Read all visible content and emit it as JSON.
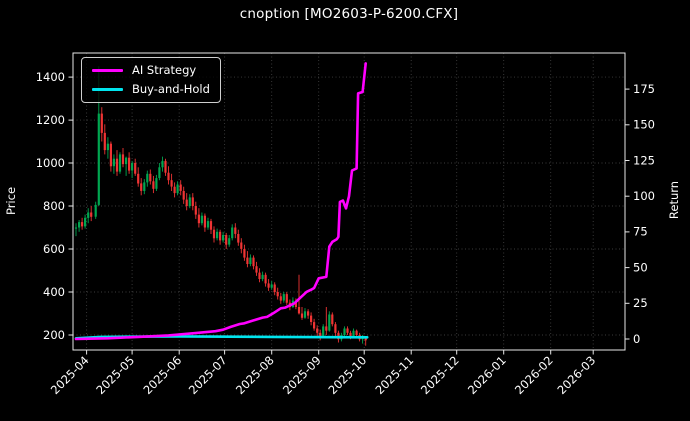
{
  "window": {
    "title": "cnoption [MO2603-P-6200.CFX]"
  },
  "chart_data": {
    "type": "candlestick",
    "title": "cnoption [MO2603-P-6200.CFX]",
    "ylabel_left": "Price",
    "ylabel_right": "Return",
    "grid": "dotted",
    "legend_position": "upper-left",
    "colors": {
      "background": "#000000",
      "text": "#ffffff",
      "spine": "#e8e8e8",
      "grid": "#3d3d3d",
      "candle_up": "#00a650",
      "candle_down": "#ef3434",
      "ai_strategy": "#ff00ff",
      "buy_and_hold": "#00e5ee"
    },
    "axes": {
      "x_ticks": [
        "2025-04",
        "2025-05",
        "2025-06",
        "2025-07",
        "2025-08",
        "2025-09",
        "2025-10",
        "2025-11",
        "2025-12",
        "2026-01",
        "2026-02",
        "2026-03"
      ],
      "x_tick_dates": [
        "2025-04-01",
        "2025-05-01",
        "2025-06-01",
        "2025-07-01",
        "2025-08-01",
        "2025-09-01",
        "2025-10-01",
        "2025-11-01",
        "2025-12-01",
        "2026-01-01",
        "2026-02-01",
        "2026-03-01"
      ],
      "x_range": [
        "2025-03-23",
        "2026-03-22"
      ],
      "price_ticks": [
        200,
        400,
        600,
        800,
        1000,
        1200,
        1400
      ],
      "price_range": [
        130,
        1512
      ],
      "return_ticks": [
        0,
        25,
        50,
        75,
        100,
        125,
        150,
        175
      ],
      "return_range": [
        -7.7,
        200.3
      ]
    },
    "series": [
      {
        "name": "AI Strategy",
        "axis": "return",
        "color_key": "ai_strategy",
        "points": [
          [
            "2025-03-25",
            0
          ],
          [
            "2025-04-15",
            0.5
          ],
          [
            "2025-05-05",
            1.5
          ],
          [
            "2025-05-25",
            2.5
          ],
          [
            "2025-06-10",
            4
          ],
          [
            "2025-06-25",
            5.5
          ],
          [
            "2025-06-30",
            6.5
          ],
          [
            "2025-07-05",
            8.5
          ],
          [
            "2025-07-11",
            10.5
          ],
          [
            "2025-07-14",
            11
          ],
          [
            "2025-07-20",
            13
          ],
          [
            "2025-07-26",
            15
          ],
          [
            "2025-07-29",
            15.5
          ],
          [
            "2025-08-02",
            18
          ],
          [
            "2025-08-07",
            21.5
          ],
          [
            "2025-08-10",
            22
          ],
          [
            "2025-08-16",
            25
          ],
          [
            "2025-08-20",
            29
          ],
          [
            "2025-08-24",
            33
          ],
          [
            "2025-08-27",
            34.5
          ],
          [
            "2025-08-29",
            35.7
          ],
          [
            "2025-09-01",
            42.5
          ],
          [
            "2025-09-06",
            43.5
          ],
          [
            "2025-09-08",
            64.7
          ],
          [
            "2025-09-10",
            68
          ],
          [
            "2025-09-13",
            70
          ],
          [
            "2025-09-14",
            71.6
          ],
          [
            "2025-09-15",
            96
          ],
          [
            "2025-09-17",
            97
          ],
          [
            "2025-09-19",
            91.5
          ],
          [
            "2025-09-21",
            100
          ],
          [
            "2025-09-23",
            118
          ],
          [
            "2025-09-26",
            119.5
          ],
          [
            "2025-09-27",
            172
          ],
          [
            "2025-09-30",
            173
          ],
          [
            "2025-10-02",
            193
          ]
        ]
      },
      {
        "name": "Buy-and-Hold",
        "axis": "return",
        "color_key": "buy_and_hold",
        "points": [
          [
            "2025-03-25",
            0.5
          ],
          [
            "2025-04-10",
            1.5
          ],
          [
            "2025-06-01",
            1.8
          ],
          [
            "2025-08-01",
            1.5
          ],
          [
            "2025-10-03",
            1.2
          ]
        ]
      }
    ],
    "candles": [
      [
        "2025-03-25",
        695,
        720,
        660,
        700
      ],
      [
        "2025-03-27",
        700,
        735,
        680,
        725
      ],
      [
        "2025-03-29",
        725,
        745,
        690,
        705
      ],
      [
        "2025-03-31",
        705,
        760,
        695,
        745
      ],
      [
        "2025-04-02",
        745,
        790,
        720,
        770
      ],
      [
        "2025-04-04",
        770,
        800,
        730,
        750
      ],
      [
        "2025-04-07",
        750,
        820,
        740,
        805
      ],
      [
        "2025-04-09",
        805,
        1450,
        800,
        1230
      ],
      [
        "2025-04-11",
        1230,
        1260,
        1100,
        1140
      ],
      [
        "2025-04-13",
        1140,
        1180,
        1040,
        1060
      ],
      [
        "2025-04-15",
        1060,
        1120,
        1020,
        1090
      ],
      [
        "2025-04-17",
        1090,
        1100,
        960,
        985
      ],
      [
        "2025-04-19",
        985,
        1040,
        950,
        1020
      ],
      [
        "2025-04-21",
        1020,
        1060,
        940,
        960
      ],
      [
        "2025-04-23",
        960,
        1050,
        950,
        1040
      ],
      [
        "2025-04-25",
        1040,
        1070,
        980,
        995
      ],
      [
        "2025-04-27",
        995,
        1030,
        940,
        1025
      ],
      [
        "2025-04-29",
        1025,
        1050,
        950,
        965
      ],
      [
        "2025-05-01",
        965,
        1010,
        930,
        1000
      ],
      [
        "2025-05-03",
        1000,
        1020,
        940,
        950
      ],
      [
        "2025-05-05",
        950,
        980,
        890,
        905
      ],
      [
        "2025-05-07",
        905,
        930,
        850,
        870
      ],
      [
        "2025-05-09",
        870,
        925,
        855,
        910
      ],
      [
        "2025-05-11",
        910,
        965,
        890,
        950
      ],
      [
        "2025-05-13",
        950,
        970,
        900,
        915
      ],
      [
        "2025-05-15",
        915,
        940,
        860,
        880
      ],
      [
        "2025-05-17",
        880,
        945,
        870,
        930
      ],
      [
        "2025-05-19",
        930,
        1000,
        920,
        980
      ],
      [
        "2025-05-21",
        980,
        1030,
        960,
        1010
      ],
      [
        "2025-05-23",
        1010,
        1020,
        940,
        955
      ],
      [
        "2025-05-25",
        955,
        985,
        900,
        920
      ],
      [
        "2025-05-27",
        920,
        950,
        870,
        890
      ],
      [
        "2025-05-29",
        890,
        910,
        840,
        860
      ],
      [
        "2025-05-31",
        860,
        915,
        850,
        900
      ],
      [
        "2025-06-02",
        900,
        920,
        850,
        870
      ],
      [
        "2025-06-04",
        870,
        890,
        810,
        830
      ],
      [
        "2025-06-06",
        830,
        860,
        780,
        800
      ],
      [
        "2025-06-08",
        800,
        855,
        790,
        840
      ],
      [
        "2025-06-10",
        840,
        860,
        780,
        800
      ],
      [
        "2025-06-12",
        800,
        820,
        740,
        760
      ],
      [
        "2025-06-14",
        760,
        790,
        700,
        720
      ],
      [
        "2025-06-16",
        720,
        770,
        710,
        755
      ],
      [
        "2025-06-18",
        755,
        765,
        680,
        700
      ],
      [
        "2025-06-20",
        700,
        745,
        690,
        730
      ],
      [
        "2025-06-22",
        730,
        740,
        670,
        690
      ],
      [
        "2025-06-24",
        690,
        705,
        630,
        650
      ],
      [
        "2025-06-26",
        650,
        695,
        640,
        680
      ],
      [
        "2025-06-28",
        680,
        690,
        620,
        640
      ],
      [
        "2025-06-30",
        640,
        680,
        630,
        665
      ],
      [
        "2025-07-02",
        665,
        675,
        600,
        620
      ],
      [
        "2025-07-04",
        620,
        665,
        610,
        650
      ],
      [
        "2025-07-06",
        650,
        715,
        640,
        700
      ],
      [
        "2025-07-08",
        700,
        720,
        650,
        670
      ],
      [
        "2025-07-10",
        670,
        690,
        615,
        630
      ],
      [
        "2025-07-12",
        630,
        650,
        580,
        600
      ],
      [
        "2025-07-14",
        600,
        620,
        545,
        560
      ],
      [
        "2025-07-16",
        560,
        590,
        515,
        530
      ],
      [
        "2025-07-18",
        530,
        575,
        520,
        560
      ],
      [
        "2025-07-20",
        560,
        570,
        505,
        520
      ],
      [
        "2025-07-22",
        520,
        540,
        475,
        490
      ],
      [
        "2025-07-24",
        490,
        510,
        445,
        460
      ],
      [
        "2025-07-26",
        460,
        495,
        450,
        480
      ],
      [
        "2025-07-28",
        480,
        490,
        425,
        440
      ],
      [
        "2025-07-30",
        440,
        460,
        405,
        420
      ],
      [
        "2025-08-01",
        420,
        450,
        410,
        435
      ],
      [
        "2025-08-03",
        435,
        445,
        385,
        400
      ],
      [
        "2025-08-05",
        400,
        420,
        365,
        380
      ],
      [
        "2025-08-07",
        380,
        395,
        345,
        360
      ],
      [
        "2025-08-09",
        360,
        400,
        350,
        390
      ],
      [
        "2025-08-11",
        390,
        400,
        340,
        350
      ],
      [
        "2025-08-13",
        350,
        365,
        315,
        330
      ],
      [
        "2025-08-15",
        330,
        375,
        325,
        360
      ],
      [
        "2025-08-17",
        360,
        370,
        320,
        330
      ],
      [
        "2025-08-19",
        330,
        480,
        295,
        300
      ],
      [
        "2025-08-21",
        300,
        330,
        270,
        280
      ],
      [
        "2025-08-23",
        280,
        325,
        275,
        310
      ],
      [
        "2025-08-25",
        310,
        320,
        275,
        290
      ],
      [
        "2025-08-27",
        290,
        305,
        245,
        260
      ],
      [
        "2025-08-29",
        260,
        275,
        220,
        230
      ],
      [
        "2025-08-31",
        230,
        245,
        195,
        210
      ],
      [
        "2025-09-02",
        210,
        225,
        175,
        190
      ],
      [
        "2025-09-04",
        190,
        250,
        185,
        240
      ],
      [
        "2025-09-06",
        240,
        330,
        200,
        220
      ],
      [
        "2025-09-08",
        220,
        310,
        215,
        295
      ],
      [
        "2025-09-10",
        295,
        305,
        240,
        250
      ],
      [
        "2025-09-12",
        250,
        260,
        195,
        210
      ],
      [
        "2025-09-14",
        210,
        220,
        165,
        180
      ],
      [
        "2025-09-16",
        180,
        210,
        170,
        200
      ],
      [
        "2025-09-18",
        200,
        240,
        195,
        230
      ],
      [
        "2025-09-20",
        230,
        240,
        200,
        210
      ],
      [
        "2025-09-22",
        210,
        220,
        180,
        190
      ],
      [
        "2025-09-24",
        190,
        230,
        185,
        220
      ],
      [
        "2025-09-26",
        220,
        225,
        190,
        200
      ],
      [
        "2025-09-28",
        200,
        210,
        170,
        180
      ],
      [
        "2025-09-30",
        180,
        200,
        160,
        190
      ],
      [
        "2025-10-02",
        190,
        195,
        150,
        175
      ]
    ]
  }
}
